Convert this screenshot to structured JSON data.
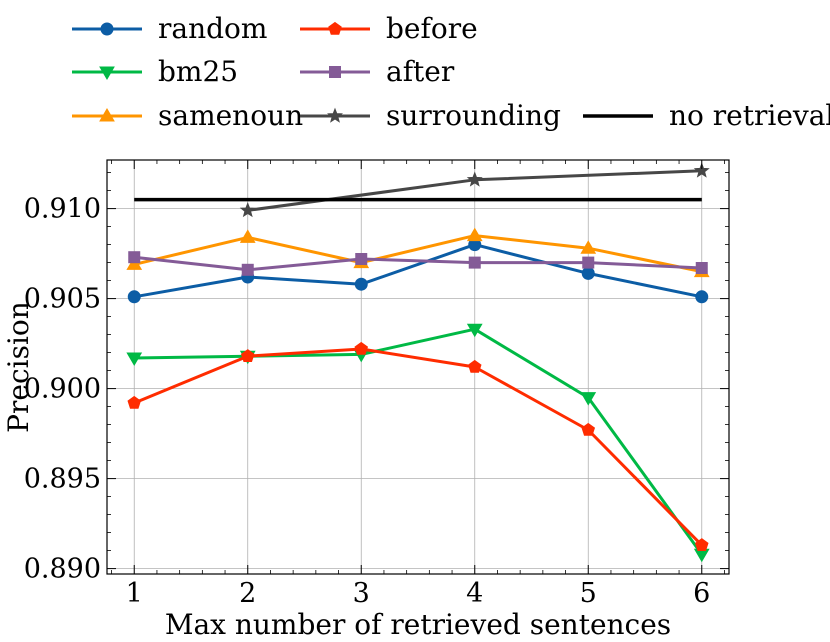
{
  "chart_data": {
    "type": "line",
    "title": "",
    "xlabel": "Max number of retrieved sentences",
    "ylabel": "Precision",
    "x": [
      1,
      2,
      3,
      4,
      5,
      6
    ],
    "xlim": [
      0.76,
      6.24
    ],
    "ylim": [
      0.8897,
      0.9127
    ],
    "xticks": [
      "1",
      "2",
      "3",
      "4",
      "5",
      "6"
    ],
    "yticks": [
      "0.890",
      "0.895",
      "0.900",
      "0.905",
      "0.910"
    ],
    "ytick_values": [
      0.89,
      0.895,
      0.9,
      0.905,
      0.91
    ],
    "grid": true,
    "legend_position": "top",
    "series": [
      {
        "name": "random",
        "color": "#0c5da5",
        "marker": "circle",
        "x": [
          1,
          2,
          3,
          4,
          5,
          6
        ],
        "values": [
          0.9051,
          0.9062,
          0.9058,
          0.908,
          0.9064,
          0.9051
        ]
      },
      {
        "name": "bm25",
        "color": "#00b945",
        "marker": "triangle-down",
        "x": [
          1,
          2,
          3,
          4,
          5,
          6
        ],
        "values": [
          0.9017,
          0.9018,
          0.9019,
          0.9033,
          0.8995,
          0.8908
        ]
      },
      {
        "name": "samenoun",
        "color": "#ff9500",
        "marker": "triangle-up",
        "x": [
          1,
          2,
          3,
          4,
          5,
          6
        ],
        "values": [
          0.9069,
          0.9084,
          0.907,
          0.9085,
          0.9078,
          0.9065
        ]
      },
      {
        "name": "before",
        "color": "#ff2c00",
        "marker": "pentagon",
        "x": [
          1,
          2,
          3,
          4,
          5,
          6
        ],
        "values": [
          0.8992,
          0.9018,
          0.9022,
          0.9012,
          0.8977,
          0.8913
        ]
      },
      {
        "name": "after",
        "color": "#845b97",
        "marker": "square",
        "x": [
          1,
          2,
          3,
          4,
          5,
          6
        ],
        "values": [
          0.9073,
          0.9066,
          0.9072,
          0.907,
          0.907,
          0.9067
        ]
      },
      {
        "name": "surrounding",
        "color": "#474747",
        "marker": "star",
        "x": [
          2,
          4,
          6
        ],
        "values": [
          0.9099,
          0.9116,
          0.9121
        ]
      },
      {
        "name": "no retrieval",
        "color": "#000000",
        "marker": "none",
        "x": [
          1,
          6
        ],
        "values": [
          0.9105,
          0.9105
        ]
      }
    ]
  }
}
